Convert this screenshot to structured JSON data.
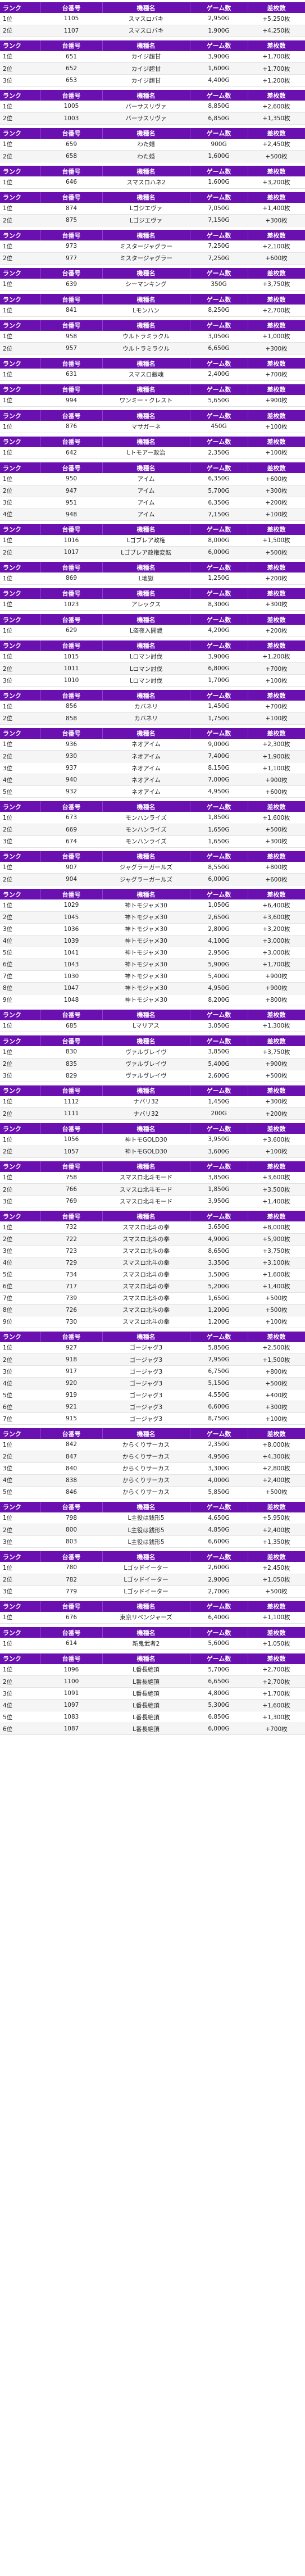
{
  "headers": [
    "ランク",
    "台番号",
    "機種名",
    "ゲーム数",
    "差枚数"
  ],
  "groups": [
    {
      "rows": [
        [
          "1位",
          "1105",
          "スマスロバキ",
          "2,950G",
          "+5,250枚"
        ],
        [
          "2位",
          "1107",
          "スマスロバキ",
          "1,900G",
          "+4,250枚"
        ]
      ]
    },
    {
      "rows": [
        [
          "1位",
          "651",
          "カイジ超甘",
          "3,900G",
          "+1,700枚"
        ],
        [
          "2位",
          "652",
          "カイジ超甘",
          "1,600G",
          "+1,700枚"
        ],
        [
          "3位",
          "653",
          "カイジ超甘",
          "4,400G",
          "+1,200枚"
        ]
      ]
    },
    {
      "rows": [
        [
          "1位",
          "1005",
          "バーサスリヴァ",
          "8,850G",
          "+2,600枚"
        ],
        [
          "2位",
          "1003",
          "バーサスリヴァ",
          "6,850G",
          "+1,350枚"
        ]
      ]
    },
    {
      "rows": [
        [
          "1位",
          "659",
          "わた婚",
          "900G",
          "+2,450枚"
        ],
        [
          "2位",
          "658",
          "わた婚",
          "1,600G",
          "+500枚"
        ]
      ]
    },
    {
      "rows": [
        [
          "1位",
          "646",
          "スマスロハネ2",
          "1,600G",
          "+3,200枚"
        ]
      ]
    },
    {
      "rows": [
        [
          "1位",
          "874",
          "Lゴジエヴァ",
          "7,050G",
          "+1,400枚"
        ],
        [
          "2位",
          "875",
          "Lゴジエヴァ",
          "7,150G",
          "+300枚"
        ]
      ]
    },
    {
      "rows": [
        [
          "1位",
          "973",
          "ミスタージャグラー",
          "7,250G",
          "+2,100枚"
        ],
        [
          "2位",
          "977",
          "ミスタージャグラー",
          "7,250G",
          "+600枚"
        ]
      ]
    },
    {
      "rows": [
        [
          "1位",
          "639",
          "シーマンキング",
          "350G",
          "+3,750枚"
        ]
      ]
    },
    {
      "rows": [
        [
          "1位",
          "841",
          "Lモンハン",
          "8,250G",
          "+2,700枚"
        ]
      ]
    },
    {
      "rows": [
        [
          "1位",
          "958",
          "ウルトラミラクル",
          "3,050G",
          "+1,000枚"
        ],
        [
          "2位",
          "957",
          "ウルトラミラクル",
          "6,650G",
          "+300枚"
        ]
      ]
    },
    {
      "rows": [
        [
          "1位",
          "631",
          "スマスロ銀魂",
          "2,400G",
          "+700枚"
        ]
      ]
    },
    {
      "rows": [
        [
          "1位",
          "994",
          "ワンミー・クレスト",
          "5,650G",
          "+900枚"
        ]
      ]
    },
    {
      "rows": [
        [
          "1位",
          "876",
          "マサガーネ",
          "450G",
          "+100枚"
        ]
      ]
    },
    {
      "rows": [
        [
          "1位",
          "642",
          "Lトモアー政治",
          "2,350G",
          "+100枚"
        ]
      ]
    },
    {
      "rows": [
        [
          "1位",
          "950",
          "アイム",
          "6,350G",
          "+600枚"
        ],
        [
          "2位",
          "947",
          "アイム",
          "5,700G",
          "+300枚"
        ],
        [
          "3位",
          "951",
          "アイム",
          "6,350G",
          "+200枚"
        ],
        [
          "4位",
          "948",
          "アイム",
          "7,150G",
          "+100枚"
        ]
      ]
    },
    {
      "rows": [
        [
          "1位",
          "1016",
          "Lゴブレア政権",
          "8,000G",
          "+1,500枚"
        ],
        [
          "2位",
          "1017",
          "Lゴブレア政権変転",
          "6,000G",
          "+500枚"
        ]
      ]
    },
    {
      "rows": [
        [
          "1位",
          "869",
          "L地獄",
          "1,250G",
          "+200枚"
        ]
      ]
    },
    {
      "rows": [
        [
          "1位",
          "1023",
          "アレックス",
          "8,300G",
          "+300枚"
        ]
      ]
    },
    {
      "rows": [
        [
          "1位",
          "629",
          "L盗夜入開戦",
          "4,200G",
          "+200枚"
        ]
      ]
    },
    {
      "rows": [
        [
          "1位",
          "1015",
          "Lロマン討伐",
          "3,900G",
          "+1,200枚"
        ],
        [
          "2位",
          "1011",
          "Lロマン討伐",
          "6,800G",
          "+700枚"
        ],
        [
          "3位",
          "1010",
          "Lロマン討伐",
          "1,700G",
          "+100枚"
        ]
      ]
    },
    {
      "rows": [
        [
          "1位",
          "856",
          "カバネリ",
          "1,450G",
          "+700枚"
        ],
        [
          "2位",
          "858",
          "カバネリ",
          "1,750G",
          "+100枚"
        ]
      ]
    },
    {
      "rows": [
        [
          "1位",
          "936",
          "ネオアイム",
          "9,000G",
          "+2,300枚"
        ],
        [
          "2位",
          "930",
          "ネオアイム",
          "7,400G",
          "+1,900枚"
        ],
        [
          "3位",
          "937",
          "ネオアイム",
          "8,150G",
          "+1,100枚"
        ],
        [
          "4位",
          "940",
          "ネオアイム",
          "7,000G",
          "+900枚"
        ],
        [
          "5位",
          "932",
          "ネオアイム",
          "4,950G",
          "+600枚"
        ]
      ]
    },
    {
      "rows": [
        [
          "1位",
          "673",
          "モンハンライズ",
          "1,850G",
          "+1,600枚"
        ],
        [
          "2位",
          "669",
          "モンハンライズ",
          "1,650G",
          "+500枚"
        ],
        [
          "3位",
          "674",
          "モンハンライズ",
          "1,650G",
          "+300枚"
        ]
      ]
    },
    {
      "rows": [
        [
          "1位",
          "907",
          "ジャグラーガールズ",
          "8,550G",
          "+800枚"
        ],
        [
          "2位",
          "904",
          "ジャグラーガールズ",
          "6,000G",
          "+600枚"
        ]
      ]
    },
    {
      "rows": [
        [
          "1位",
          "1029",
          "神トモジャメ30",
          "1,050G",
          "+6,400枚"
        ],
        [
          "2位",
          "1045",
          "神トモジャメ30",
          "2,650G",
          "+3,600枚"
        ],
        [
          "3位",
          "1036",
          "神トモジャメ30",
          "2,800G",
          "+3,200枚"
        ],
        [
          "4位",
          "1039",
          "神トモジャメ30",
          "4,100G",
          "+3,000枚"
        ],
        [
          "5位",
          "1041",
          "神トモジャメ30",
          "2,950G",
          "+3,000枚"
        ],
        [
          "6位",
          "1043",
          "神トモジャメ30",
          "5,900G",
          "+1,700枚"
        ],
        [
          "7位",
          "1030",
          "神トモジャメ30",
          "5,400G",
          "+900枚"
        ],
        [
          "8位",
          "1047",
          "神トモジャメ30",
          "4,950G",
          "+900枚"
        ],
        [
          "9位",
          "1048",
          "神トモジャメ30",
          "8,200G",
          "+800枚"
        ]
      ]
    },
    {
      "rows": [
        [
          "1位",
          "685",
          "Lマリアス",
          "3,050G",
          "+1,300枚"
        ]
      ]
    },
    {
      "rows": [
        [
          "1位",
          "830",
          "ヴァルヴレイヴ",
          "3,850G",
          "+3,750枚"
        ],
        [
          "2位",
          "835",
          "ヴァルヴレイヴ",
          "5,400G",
          "+900枚"
        ],
        [
          "3位",
          "829",
          "ヴァルヴレイヴ",
          "2,600G",
          "+500枚"
        ]
      ]
    },
    {
      "rows": [
        [
          "1位",
          "1112",
          "ナバリ32",
          "1,450G",
          "+300枚"
        ],
        [
          "2位",
          "1111",
          "ナバリ32",
          "200G",
          "+200枚"
        ]
      ]
    },
    {
      "rows": [
        [
          "1位",
          "1056",
          "神トモGOLD30",
          "3,950G",
          "+3,600枚"
        ],
        [
          "2位",
          "1057",
          "神トモGOLD30",
          "3,600G",
          "+100枚"
        ]
      ]
    },
    {
      "rows": [
        [
          "1位",
          "758",
          "スマスロ北斗モード",
          "3,850G",
          "+3,600枚"
        ],
        [
          "2位",
          "766",
          "スマスロ北斗モード",
          "1,850G",
          "+3,500枚"
        ],
        [
          "3位",
          "769",
          "スマスロ北斗モード",
          "3,950G",
          "+1,400枚"
        ]
      ]
    },
    {
      "rows": [
        [
          "1位",
          "732",
          "スマスロ北斗の拳",
          "3,650G",
          "+8,000枚"
        ],
        [
          "2位",
          "722",
          "スマスロ北斗の拳",
          "4,900G",
          "+5,900枚"
        ],
        [
          "3位",
          "723",
          "スマスロ北斗の拳",
          "8,650G",
          "+3,750枚"
        ],
        [
          "4位",
          "729",
          "スマスロ北斗の拳",
          "3,350G",
          "+3,100枚"
        ],
        [
          "5位",
          "734",
          "スマスロ北斗の拳",
          "3,500G",
          "+1,600枚"
        ],
        [
          "6位",
          "717",
          "スマスロ北斗の拳",
          "5,200G",
          "+1,400枚"
        ],
        [
          "7位",
          "739",
          "スマスロ北斗の拳",
          "1,650G",
          "+500枚"
        ],
        [
          "8位",
          "726",
          "スマスロ北斗の拳",
          "1,200G",
          "+500枚"
        ],
        [
          "9位",
          "730",
          "スマスロ北斗の拳",
          "1,200G",
          "+100枚"
        ]
      ]
    },
    {
      "rows": [
        [
          "1位",
          "927",
          "ゴージャグ3",
          "5,850G",
          "+2,500枚"
        ],
        [
          "2位",
          "918",
          "ゴージャグ3",
          "7,950G",
          "+1,500枚"
        ],
        [
          "3位",
          "917",
          "ゴージャグ3",
          "6,750G",
          "+800枚"
        ],
        [
          "4位",
          "920",
          "ゴージャグ3",
          "5,150G",
          "+500枚"
        ],
        [
          "5位",
          "919",
          "ゴージャグ3",
          "4,550G",
          "+400枚"
        ],
        [
          "6位",
          "921",
          "ゴージャグ3",
          "6,600G",
          "+300枚"
        ],
        [
          "7位",
          "915",
          "ゴージャグ3",
          "8,750G",
          "+100枚"
        ]
      ]
    },
    {
      "rows": [
        [
          "1位",
          "842",
          "からくりサーカス",
          "2,350G",
          "+8,000枚"
        ],
        [
          "2位",
          "847",
          "からくりサーカス",
          "4,950G",
          "+4,300枚"
        ],
        [
          "3位",
          "840",
          "からくりサーカス",
          "3,300G",
          "+2,800枚"
        ],
        [
          "4位",
          "838",
          "からくりサーカス",
          "4,000G",
          "+2,400枚"
        ],
        [
          "5位",
          "846",
          "からくりサーカス",
          "5,850G",
          "+500枚"
        ]
      ]
    },
    {
      "rows": [
        [
          "1位",
          "798",
          "L主役は銭形5",
          "4,650G",
          "+5,950枚"
        ],
        [
          "2位",
          "800",
          "L主役は銭形5",
          "4,850G",
          "+2,400枚"
        ],
        [
          "3位",
          "803",
          "L主役は銭形5",
          "6,600G",
          "+1,350枚"
        ]
      ]
    },
    {
      "rows": [
        [
          "1位",
          "780",
          "Lゴッドイーター",
          "2,600G",
          "+2,450枚"
        ],
        [
          "2位",
          "782",
          "Lゴッドイーター",
          "2,900G",
          "+1,050枚"
        ],
        [
          "3位",
          "779",
          "Lゴッドイーター",
          "2,700G",
          "+500枚"
        ]
      ]
    },
    {
      "rows": [
        [
          "1位",
          "676",
          "東京リベンジャーズ",
          "6,400G",
          "+1,100枚"
        ]
      ]
    },
    {
      "rows": [
        [
          "1位",
          "614",
          "新鬼武者2",
          "5,600G",
          "+1,050枚"
        ]
      ]
    },
    {
      "rows": [
        [
          "1位",
          "1096",
          "L番長絶頂",
          "5,700G",
          "+2,700枚"
        ],
        [
          "2位",
          "1100",
          "L番長絶頂",
          "6,650G",
          "+2,700枚"
        ],
        [
          "3位",
          "1091",
          "L番長絶頂",
          "4,800G",
          "+1,700枚"
        ],
        [
          "4位",
          "1097",
          "L番長絶頂",
          "5,300G",
          "+1,600枚"
        ],
        [
          "5位",
          "1083",
          "L番長絶頂",
          "6,850G",
          "+1,300枚"
        ],
        [
          "6位",
          "1087",
          "L番長絶頂",
          "6,000G",
          "+700枚"
        ]
      ]
    }
  ]
}
